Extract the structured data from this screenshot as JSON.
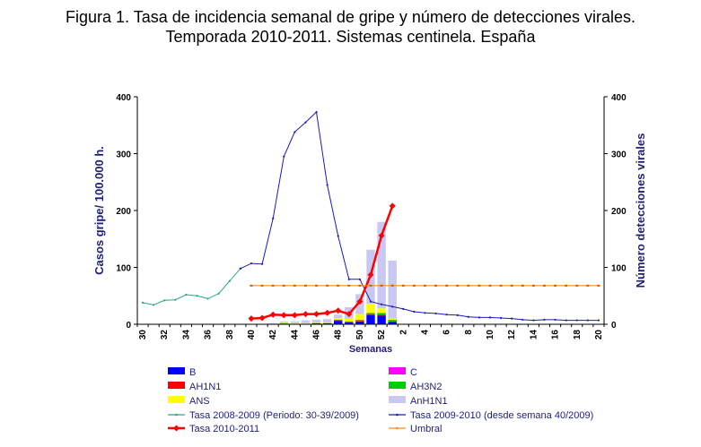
{
  "title": {
    "line1": "Figura 1. Tasa de incidencia semanal de gripe y número de detecciones virales.",
    "line2": "Temporada 2010-2011. Sistemas centinela. España"
  },
  "chart_data": {
    "type": "bar+line",
    "xlabel": "Semanas",
    "ylabel_left": "Casos gripe/ 100.000 h.",
    "ylabel_right": "Número detecciones virales",
    "ylim_left": [
      0,
      400
    ],
    "ylim_right": [
      0,
      400
    ],
    "yticks": [
      "0",
      "100",
      "200",
      "300",
      "400"
    ],
    "weeks": [
      30,
      31,
      32,
      33,
      34,
      35,
      36,
      37,
      38,
      39,
      40,
      41,
      42,
      43,
      44,
      45,
      46,
      47,
      48,
      49,
      50,
      51,
      52,
      1,
      2,
      3,
      4,
      5,
      6,
      7,
      8,
      9,
      10,
      11,
      12,
      13,
      14,
      15,
      16,
      17,
      18,
      19,
      20
    ],
    "xtick_labels": [
      "30",
      "32",
      "34",
      "36",
      "38",
      "40",
      "42",
      "44",
      "46",
      "48",
      "50",
      "52",
      "2",
      "4",
      "6",
      "8",
      "10",
      "12",
      "14",
      "16",
      "18",
      "20"
    ],
    "bar_weeks": [
      40,
      41,
      42,
      43,
      44,
      45,
      46,
      47,
      48,
      49,
      50,
      51,
      52,
      1
    ],
    "bar_series": [
      {
        "name": "B",
        "color": "#0000ff",
        "values": [
          0,
          0,
          0,
          1,
          1,
          1,
          2,
          2,
          6,
          3,
          5,
          16,
          15,
          4
        ]
      },
      {
        "name": "C",
        "color": "#ff00ff",
        "values": [
          0,
          0,
          0,
          0,
          0,
          0,
          0,
          0,
          0,
          0,
          0,
          0,
          0,
          0
        ]
      },
      {
        "name": "AH1N1",
        "color": "#ff0000",
        "values": [
          0,
          0,
          0,
          0,
          0,
          0,
          0,
          0,
          1,
          1,
          1,
          2,
          2,
          1
        ]
      },
      {
        "name": "AH3N2",
        "color": "#00cc00",
        "values": [
          0,
          0,
          0,
          1,
          0,
          0,
          0,
          0,
          1,
          1,
          2,
          2,
          3,
          3
        ]
      },
      {
        "name": "ANS",
        "color": "#ffff00",
        "values": [
          0,
          0,
          1,
          1,
          1,
          1,
          1,
          1,
          3,
          5,
          10,
          16,
          8,
          2
        ]
      },
      {
        "name": "AnH1N1",
        "color": "#c8c8f2",
        "values": [
          0,
          0,
          1,
          2,
          3,
          5,
          5,
          6,
          6,
          20,
          35,
          95,
          152,
          102
        ]
      }
    ],
    "line_series": [
      {
        "name": "Tasa 2008-2009 (Periodo: 30-39/2009)",
        "color": "#2aa58a",
        "weeks": [
          30,
          31,
          32,
          33,
          34,
          35,
          36,
          37,
          38,
          39
        ],
        "values": [
          38,
          34,
          42,
          43,
          52,
          50,
          45,
          54,
          76,
          98
        ]
      },
      {
        "name": "Tasa 2009-2010 (desde semana 40/2009)",
        "color": "#1a1ab8",
        "weeks": [
          39,
          40,
          41,
          42,
          43,
          44,
          45,
          46,
          47,
          48,
          49,
          50,
          51,
          52,
          1,
          2,
          3,
          4,
          5,
          6,
          7,
          8,
          9,
          10,
          11,
          12,
          13,
          14,
          15,
          16,
          17,
          18,
          19,
          20
        ],
        "values": [
          98,
          107,
          106,
          186,
          295,
          338,
          355,
          373,
          245,
          155,
          79,
          79,
          40,
          35,
          31,
          27,
          22,
          20,
          19,
          17,
          16,
          13,
          12,
          12,
          11,
          10,
          8,
          7,
          8,
          8,
          7,
          7,
          7,
          7
        ]
      },
      {
        "name": "Tasa 2010-2011",
        "color": "#ff0000",
        "weeks": [
          40,
          41,
          42,
          43,
          44,
          45,
          46,
          47,
          48,
          49,
          50,
          51,
          52,
          1
        ],
        "values": [
          10,
          11,
          17,
          16,
          16,
          18,
          18,
          20,
          24,
          18,
          40,
          87,
          156,
          208
        ]
      },
      {
        "name": "Umbral",
        "color": "#ff8c1a",
        "weeks": [
          40,
          41,
          42,
          43,
          44,
          45,
          46,
          47,
          48,
          49,
          50,
          51,
          52,
          1,
          2,
          3,
          4,
          5,
          6,
          7,
          8,
          9,
          10,
          11,
          12,
          13,
          14,
          15,
          16,
          17,
          18,
          19,
          20
        ],
        "values": [
          68,
          68,
          68,
          68,
          68,
          68,
          68,
          68,
          68,
          68,
          68,
          68,
          68,
          68,
          68,
          68,
          68,
          68,
          68,
          68,
          68,
          68,
          68,
          68,
          68,
          68,
          68,
          68,
          68,
          68,
          68,
          68,
          68
        ]
      }
    ],
    "legend": [
      {
        "label": "B",
        "kind": "bar",
        "color": "#0000ff"
      },
      {
        "label": "C",
        "kind": "bar",
        "color": "#ff00ff"
      },
      {
        "label": "AH1N1",
        "kind": "bar",
        "color": "#ff0000"
      },
      {
        "label": "AH3N2",
        "kind": "bar",
        "color": "#00cc00"
      },
      {
        "label": "ANS",
        "kind": "bar",
        "color": "#ffff00"
      },
      {
        "label": "AnH1N1",
        "kind": "bar",
        "color": "#c8c8f2"
      },
      {
        "label": "Tasa 2008-2009 (Periodo: 30-39/2009)",
        "kind": "line",
        "color": "#2aa58a"
      },
      {
        "label": "Tasa 2009-2010 (desde semana 40/2009)",
        "kind": "line",
        "color": "#1a1ab8"
      },
      {
        "label": "Tasa 2010-2011",
        "kind": "line-diamond",
        "color": "#ff0000"
      },
      {
        "label": "Umbral",
        "kind": "line",
        "color": "#ff8c1a"
      }
    ]
  }
}
